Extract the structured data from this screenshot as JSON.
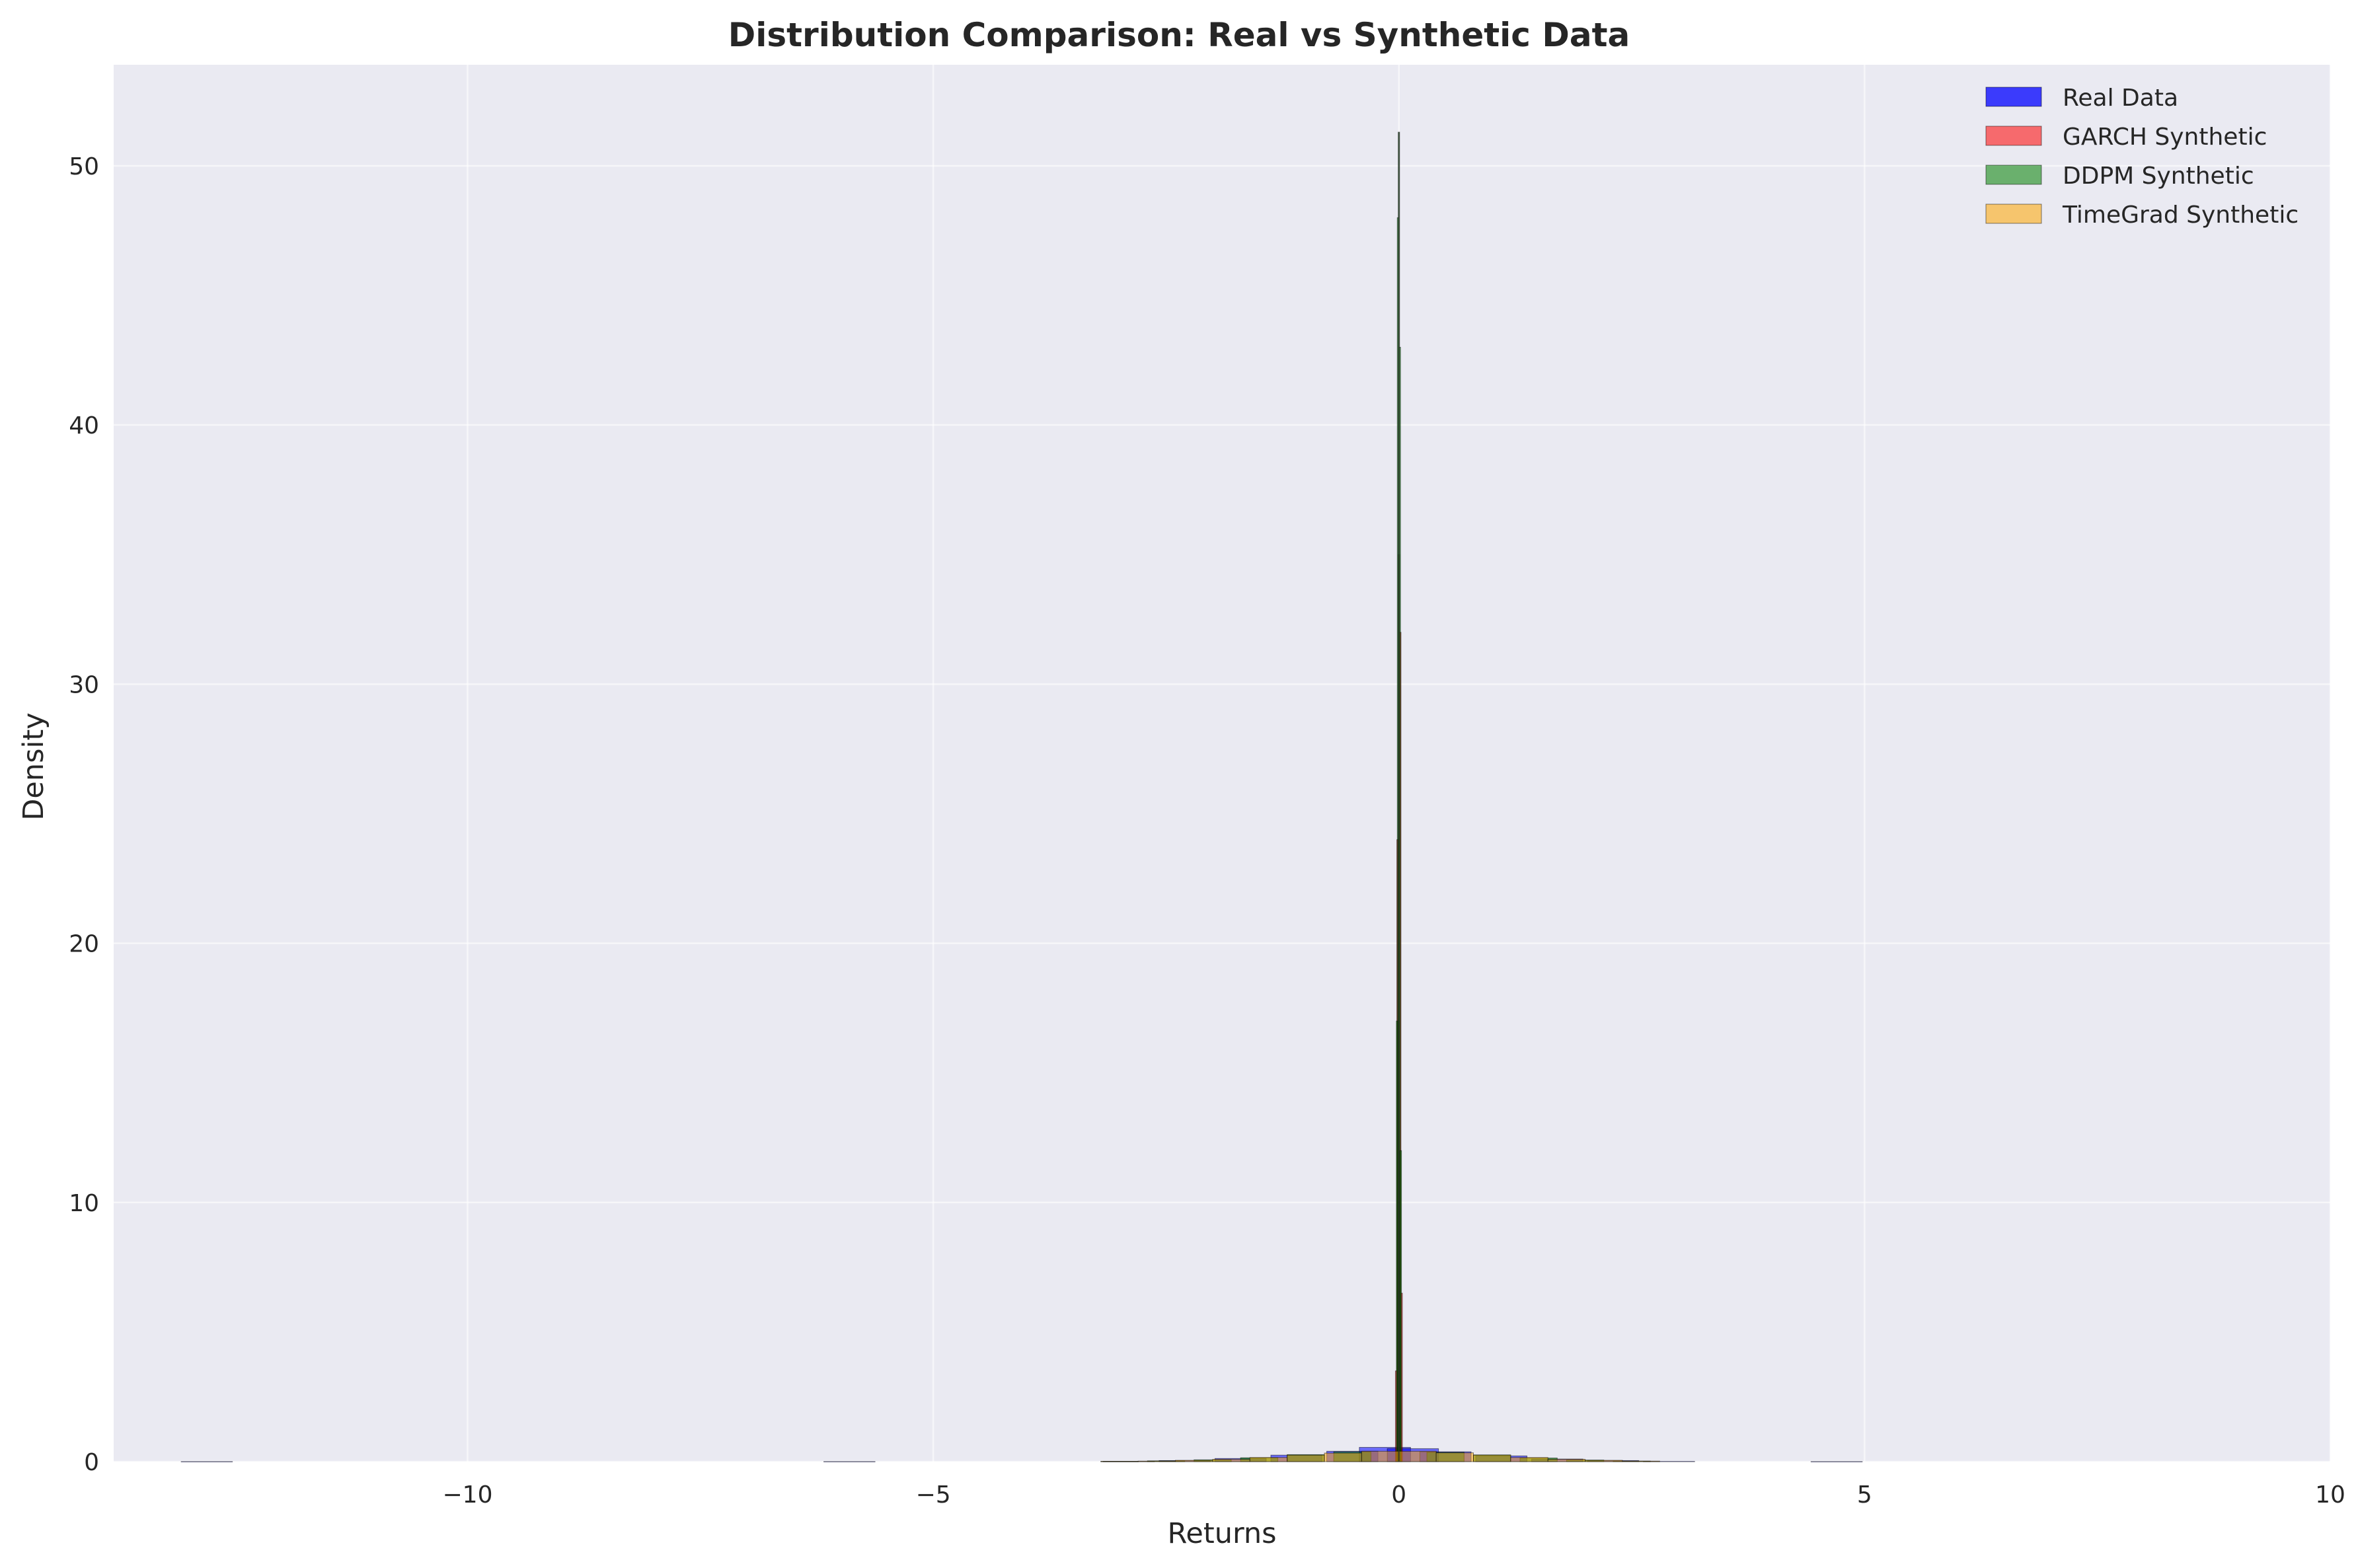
{
  "chart_data": {
    "type": "bar",
    "title": "Distribution Comparison: Real vs Synthetic Data",
    "xlabel": "Returns",
    "ylabel": "Density",
    "xlim": [
      -13.8,
      10.0
    ],
    "ylim": [
      0,
      53.9
    ],
    "xticks": [
      -10,
      -5,
      0,
      5,
      10
    ],
    "xtick_labels": [
      "−10",
      "−5",
      "0",
      "5",
      "10"
    ],
    "yticks": [
      0,
      10,
      20,
      30,
      40,
      50
    ],
    "ytick_labels": [
      "0",
      "10",
      "20",
      "30",
      "40",
      "50"
    ],
    "grid": true,
    "legend_position": "top-right",
    "series": [
      {
        "name": "Real Data",
        "color": "#0000ff",
        "bins": [
          [
            -12.8,
            0.002
          ],
          [
            -5.9,
            0.003
          ],
          [
            -2.9,
            0.01
          ],
          [
            -2.3,
            0.04
          ],
          [
            -1.7,
            0.12
          ],
          [
            -1.1,
            0.25
          ],
          [
            -0.5,
            0.4
          ],
          [
            -0.15,
            0.55
          ],
          [
            0.15,
            0.5
          ],
          [
            0.5,
            0.38
          ],
          [
            1.1,
            0.22
          ],
          [
            1.7,
            0.1
          ],
          [
            2.3,
            0.04
          ],
          [
            2.9,
            0.01
          ],
          [
            4.7,
            0.002
          ]
        ]
      },
      {
        "name": "GARCH Synthetic",
        "color": "#ff0000",
        "bins": [
          [
            -0.03,
            3.5
          ],
          [
            -0.015,
            24.0
          ],
          [
            0.0,
            35.0
          ],
          [
            0.015,
            32.0
          ],
          [
            0.03,
            6.5
          ]
        ]
      },
      {
        "name": "DDPM Synthetic",
        "color": "#008000",
        "bins": [
          [
            -0.02,
            17.0
          ],
          [
            -0.01,
            48.0
          ],
          [
            0.0,
            51.3
          ],
          [
            0.01,
            43.0
          ],
          [
            0.02,
            12.0
          ],
          [
            -3.0,
            0.01
          ],
          [
            -2.5,
            0.03
          ],
          [
            -2.0,
            0.07
          ],
          [
            -1.5,
            0.15
          ],
          [
            -1.0,
            0.27
          ],
          [
            -0.5,
            0.38
          ],
          [
            0.5,
            0.36
          ],
          [
            1.0,
            0.26
          ],
          [
            1.5,
            0.14
          ],
          [
            2.0,
            0.06
          ],
          [
            2.5,
            0.02
          ]
        ]
      },
      {
        "name": "TimeGrad Synthetic",
        "color": "#ffa500",
        "bins": [
          [
            -3.0,
            0.01
          ],
          [
            -2.6,
            0.02
          ],
          [
            -2.2,
            0.05
          ],
          [
            -1.8,
            0.09
          ],
          [
            -1.4,
            0.16
          ],
          [
            -1.0,
            0.25
          ],
          [
            -0.6,
            0.33
          ],
          [
            -0.2,
            0.4
          ],
          [
            0.2,
            0.4
          ],
          [
            0.6,
            0.34
          ],
          [
            1.0,
            0.25
          ],
          [
            1.4,
            0.16
          ],
          [
            1.8,
            0.09
          ],
          [
            2.2,
            0.05
          ],
          [
            2.6,
            0.02
          ]
        ]
      }
    ]
  }
}
